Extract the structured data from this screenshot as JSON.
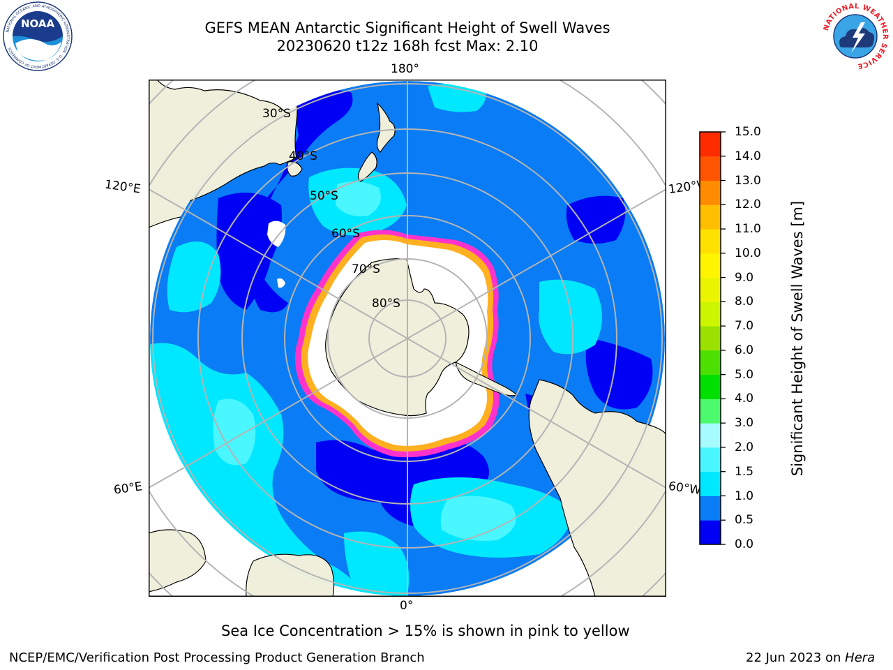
{
  "header": {
    "title_line1": "GEFS MEAN Antarctic Significant Height of Swell Waves",
    "title_line2": "20230620 t12z 168h fcst   Max: 2.10"
  },
  "logos": {
    "noaa_text": "NOAA",
    "noaa_ring_text": "NATIONAL OCEANIC AND ATMOSPHERIC ADMINISTRATION · U.S. DEPARTMENT OF COMMERCE",
    "nws_ring_text": "NATIONAL WEATHER SERVICE"
  },
  "map": {
    "projection": "south-polar-stereographic",
    "longitude_labels": {
      "top": "180°",
      "bottom": "0°",
      "upper_left": "120°E",
      "lower_left": "60°E",
      "upper_right": "120°W",
      "lower_right": "60°W"
    },
    "latitude_labels": [
      "30°S",
      "40°S",
      "50°S",
      "60°S",
      "70°S",
      "80°S"
    ],
    "colors": {
      "land": "#efefdc",
      "ocean_base": "#0a7cf5",
      "swell_low": "#0000f5",
      "swell_mid": "#00e8ff",
      "swell_high": "#4af6ff",
      "sea_ice": "#ffffff",
      "ice_edge_pink": "#ff33cc",
      "ice_edge_orange": "#ffb020",
      "gridline": "#b4b4b4"
    }
  },
  "colorbar": {
    "label": "Significant Height of Swell Waves [m]",
    "ticks": [
      "0.0",
      "0.5",
      "1.0",
      "1.5",
      "2.0",
      "3.0",
      "4.0",
      "5.0",
      "6.0",
      "7.0",
      "8.0",
      "9.0",
      "10.0",
      "11.0",
      "12.0",
      "13.0",
      "14.0",
      "15.0"
    ],
    "colors": [
      "#0000f5",
      "#0a7cf5",
      "#00e8ff",
      "#4af6ff",
      "#a6fbff",
      "#4dfa6e",
      "#00e000",
      "#4be000",
      "#9ae000",
      "#ccf500",
      "#ecf500",
      "#fff500",
      "#ffe100",
      "#ffbf00",
      "#ff8c00",
      "#ff5400",
      "#ff2c00",
      "#ff0000"
    ]
  },
  "notes": {
    "sea_ice": "Sea Ice Concentration > 15% is shown in pink to yellow"
  },
  "footer": {
    "left": "NCEP/EMC/Verification Post Processing Product Generation Branch",
    "right_prefix": "22 Jun 2023 on ",
    "right_host": "Hera"
  }
}
